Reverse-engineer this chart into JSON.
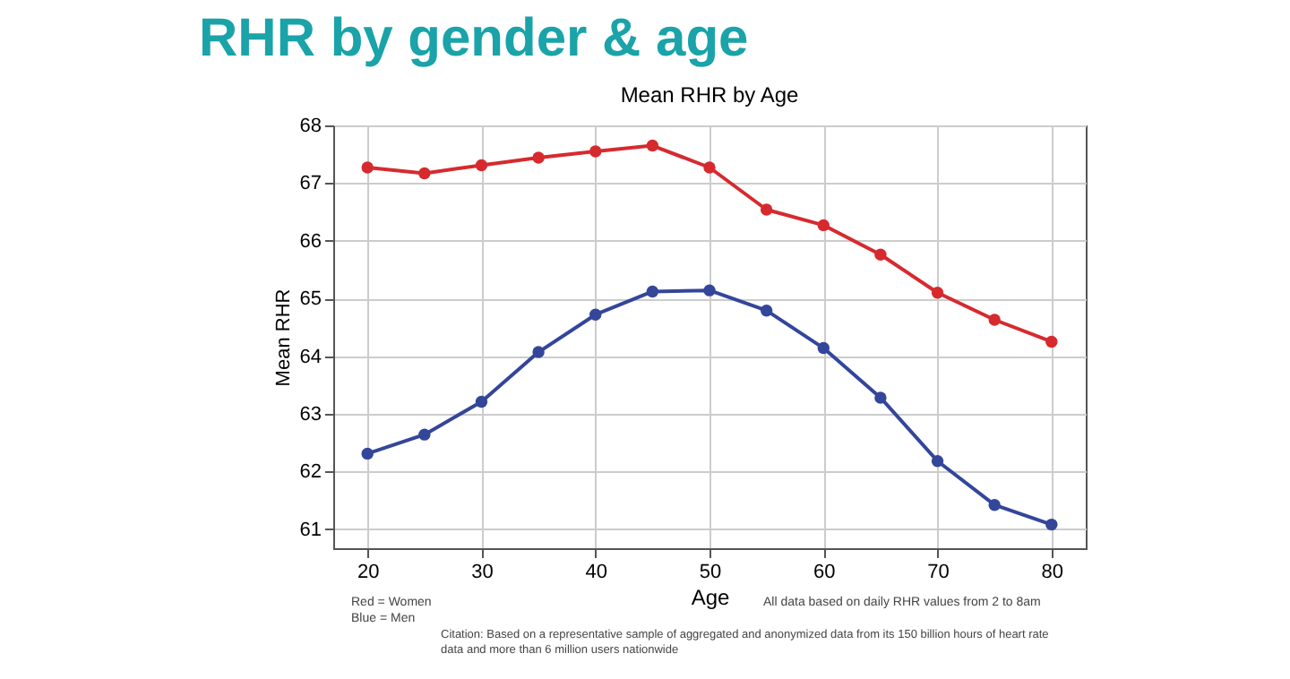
{
  "chart_data": {
    "type": "line",
    "title": "RHR by gender & age",
    "subtitle": "Mean RHR by Age",
    "xlabel": "Age",
    "ylabel": "Mean RHR",
    "x": [
      20,
      25,
      30,
      35,
      40,
      45,
      50,
      55,
      60,
      65,
      70,
      75,
      80
    ],
    "series": [
      {
        "color": "#d62a2f",
        "values": [
          67.27,
          67.17,
          67.31,
          67.44,
          67.55,
          67.65,
          67.27,
          66.54,
          66.27,
          65.76,
          65.1,
          64.63,
          64.25
        ]
      },
      {
        "color": "#34469a",
        "values": [
          62.31,
          62.64,
          63.21,
          64.07,
          64.72,
          65.12,
          65.14,
          64.79,
          64.14,
          63.28,
          62.18,
          61.42,
          61.08
        ]
      }
    ],
    "xlim": [
      17,
      83
    ],
    "xticks": [
      20,
      30,
      40,
      50,
      60,
      70,
      80
    ],
    "ylim": [
      60.67,
      68
    ],
    "yticks": [
      61,
      62,
      63,
      64,
      65,
      66,
      67,
      68
    ],
    "grid": true,
    "marker": "circle",
    "line_style": "solid",
    "annotations": [
      "Red = Women\nBlue = Men",
      "All data based on daily RHR values from 2 to 8am",
      "Citation: Based on a representative sample of aggregated and anonymized data from its 150 billion hours of heart rate data and more than 6 million users nationwide"
    ]
  }
}
